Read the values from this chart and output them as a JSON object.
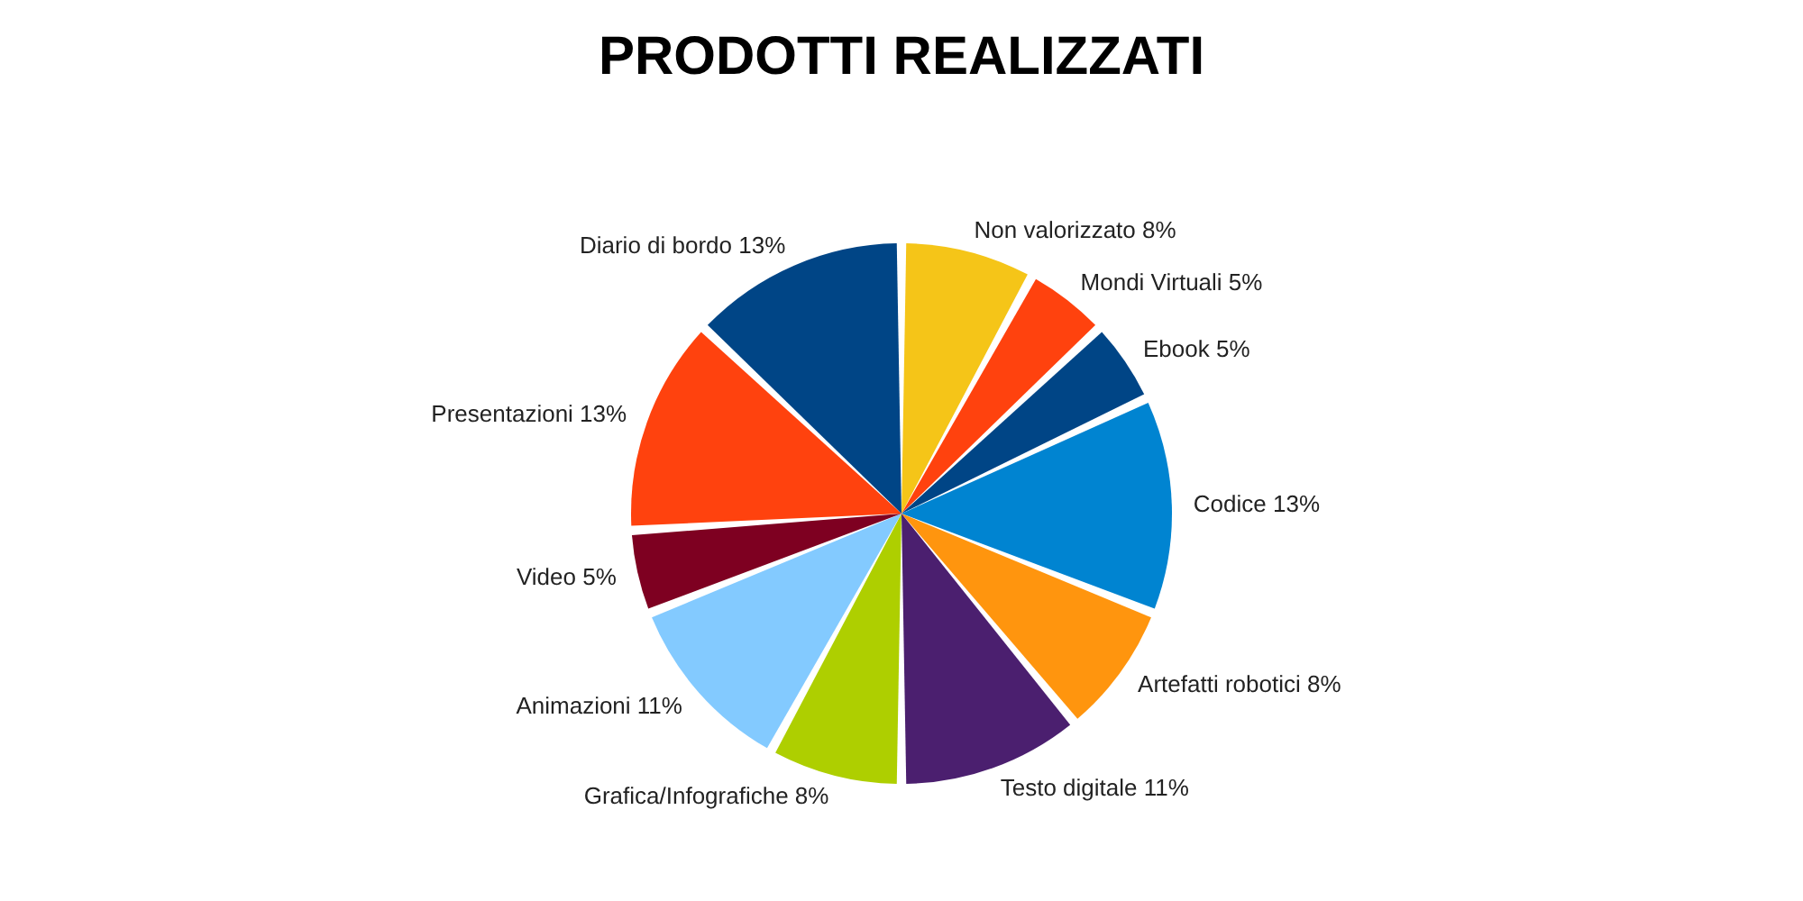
{
  "chart_data": {
    "type": "pie",
    "title": "PRODOTTI REALIZZATI",
    "categories": [
      "Non valorizzato",
      "Mondi Virtuali",
      "Ebook",
      "Codice",
      "Artefatti robotici",
      "Testo digitale",
      "Grafica/Infografiche",
      "Animazioni",
      "Video",
      "Presentazioni",
      "Diario di bordo"
    ],
    "values": [
      8,
      5,
      5,
      13,
      8,
      11,
      8,
      11,
      5,
      13,
      13
    ],
    "value_labels": [
      "8%",
      "5%",
      "5%",
      "13%",
      "8%",
      "11%",
      "8%",
      "11%",
      "5%",
      "13%",
      "13%"
    ],
    "colors": [
      "#f5c518",
      "#ff420e",
      "#004586",
      "#0084d1",
      "#ff950e",
      "#4b1f6f",
      "#aecf00",
      "#83caff",
      "#7e0021",
      "#ff420e",
      "#004586"
    ],
    "legend": false
  }
}
